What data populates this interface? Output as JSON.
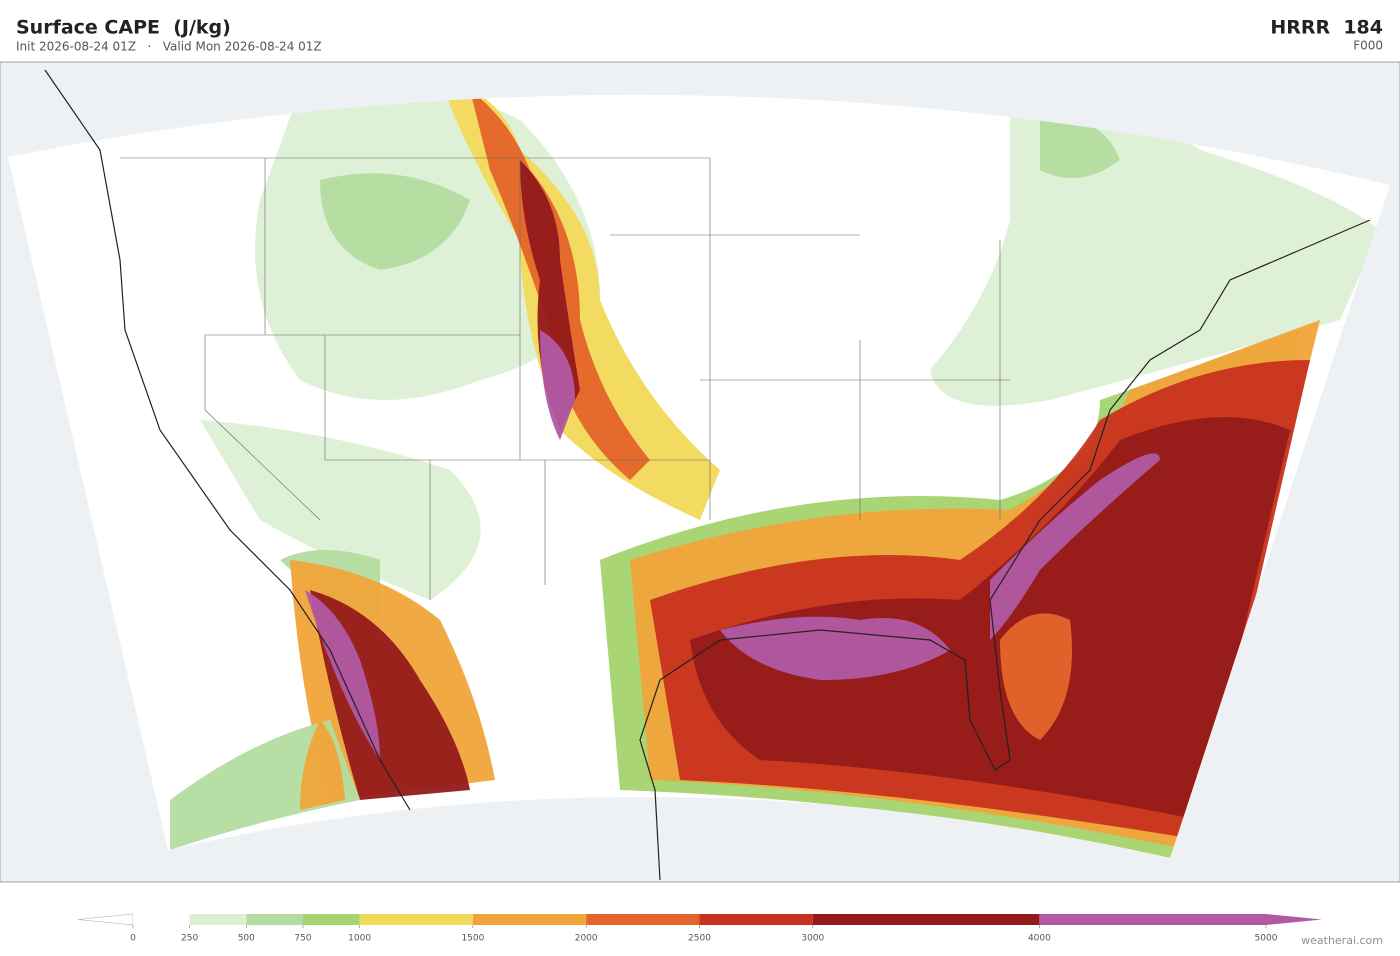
{
  "header": {
    "title": "Surface CAPE  (J/kg)",
    "subtitle": "Init 2026-08-24 01Z   ·   Valid Mon 2026-08-24 01Z",
    "model": "HRRR  184",
    "forecast_hour": "F000"
  },
  "colorbar": {
    "ticks": [
      0,
      250,
      500,
      750,
      1000,
      1500,
      2000,
      2500,
      3000,
      4000,
      5000
    ],
    "colors": [
      "#ffffff",
      "#dcefd3",
      "#b3dca0",
      "#a5d36e",
      "#f2d95a",
      "#f0a43a",
      "#e4652a",
      "#c8321f",
      "#931a1a",
      "#b05aa3"
    ]
  },
  "footer": {
    "watermark": "weatherai.com"
  }
}
